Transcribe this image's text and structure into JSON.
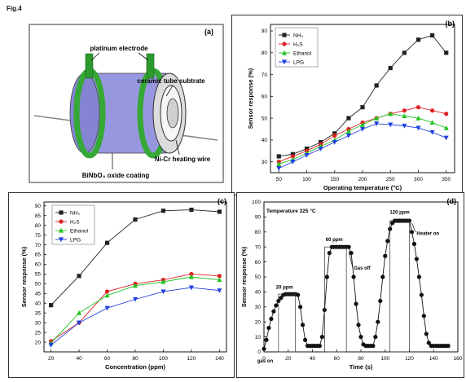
{
  "figure_label": "Fig.4",
  "panel_a": {
    "tag": "(a)",
    "labels": {
      "electrode": "platinum electrode",
      "tube": "ceramic tube subtrate",
      "heater": "Ni-Cr heating wire",
      "coating": "BiNbO₄ oxide coating"
    }
  },
  "chart_data": [
    {
      "panel": "(b)",
      "type": "line",
      "xlabel": "Operating temperature (°C)",
      "ylabel": "Sensor response (%)",
      "xlim": [
        35,
        365
      ],
      "ylim": [
        25,
        93
      ],
      "xticks": [
        50,
        100,
        150,
        200,
        250,
        300,
        350
      ],
      "yticks": [
        30,
        40,
        50,
        60,
        70,
        80,
        90
      ],
      "legend": "top-left",
      "series": [
        {
          "name": "NH₃",
          "color": "#222222",
          "marker": "square",
          "x": [
            50,
            75,
            100,
            125,
            150,
            175,
            200,
            225,
            250,
            275,
            300,
            325,
            350
          ],
          "y": [
            32.5,
            33.5,
            36,
            39,
            43,
            50,
            55,
            65,
            73,
            80,
            86,
            88,
            80
          ]
        },
        {
          "name": "H₂S",
          "color": "#e02020",
          "marker": "circle",
          "x": [
            50,
            75,
            100,
            125,
            150,
            175,
            200,
            225,
            250,
            275,
            300,
            325,
            350
          ],
          "y": [
            30,
            32.5,
            35,
            38,
            42,
            45,
            48,
            50,
            52,
            53.5,
            55,
            53.5,
            52
          ]
        },
        {
          "name": "Ethanol",
          "color": "#22c322",
          "marker": "triangle-up",
          "x": [
            50,
            75,
            100,
            125,
            150,
            175,
            200,
            225,
            250,
            275,
            300,
            325,
            350
          ],
          "y": [
            29,
            31,
            34,
            37,
            40,
            44,
            47,
            50,
            52,
            51,
            50,
            48,
            45.5
          ]
        },
        {
          "name": "LPG",
          "color": "#2040e0",
          "marker": "triangle-down",
          "x": [
            50,
            75,
            100,
            125,
            150,
            175,
            200,
            225,
            250,
            275,
            300,
            325,
            350
          ],
          "y": [
            27,
            30,
            33,
            36,
            39,
            42,
            45,
            47.5,
            47,
            46.5,
            45.5,
            43.5,
            41
          ]
        }
      ]
    },
    {
      "panel": "(c)",
      "type": "line",
      "xlabel": "Concentration (ppm)",
      "ylabel": "Sensor response (%)",
      "xlim": [
        15,
        145
      ],
      "ylim": [
        15,
        92
      ],
      "xticks": [
        20,
        40,
        60,
        80,
        100,
        120,
        140
      ],
      "yticks": [
        20,
        25,
        30,
        35,
        40,
        45,
        50,
        55,
        60,
        65,
        70,
        75,
        80,
        85,
        90
      ],
      "legend": "top-left",
      "series": [
        {
          "name": "NH₃",
          "color": "#222222",
          "marker": "square",
          "x": [
            20,
            40,
            60,
            80,
            100,
            120,
            140
          ],
          "y": [
            39,
            54,
            71,
            83,
            87.5,
            88,
            87
          ]
        },
        {
          "name": "H₂S",
          "color": "#e02020",
          "marker": "circle",
          "x": [
            20,
            40,
            60,
            80,
            100,
            120,
            140
          ],
          "y": [
            20.5,
            30,
            46,
            50,
            52,
            55,
            54
          ]
        },
        {
          "name": "Ethanol",
          "color": "#22c322",
          "marker": "triangle-up",
          "x": [
            20,
            40,
            60,
            80,
            100,
            120,
            140
          ],
          "y": [
            19.5,
            35,
            44,
            49,
            51,
            53.5,
            52
          ]
        },
        {
          "name": "LPG",
          "color": "#2040e0",
          "marker": "triangle-down",
          "x": [
            20,
            40,
            60,
            80,
            100,
            120,
            140
          ],
          "y": [
            18.5,
            30,
            37.5,
            42,
            46,
            48,
            46.5
          ]
        }
      ]
    },
    {
      "panel": "(d)",
      "type": "line",
      "xlabel": "Time (s)",
      "ylabel": "Sensor response (%)",
      "xlim": [
        0,
        160
      ],
      "ylim": [
        0,
        100
      ],
      "xticks": [
        0,
        20,
        40,
        60,
        80,
        100,
        120,
        140,
        160
      ],
      "yticks": [
        0,
        10,
        20,
        30,
        40,
        50,
        60,
        70,
        80,
        90,
        100
      ],
      "title": "Temperature 325 °C",
      "annotations": [
        "20 ppm",
        "60 ppm",
        "120 ppm",
        "Gas off",
        "Heater on",
        "gas on"
      ],
      "series": [
        {
          "name": "",
          "color": "#111111",
          "marker": "circle",
          "x": [
            0,
            2,
            4,
            6,
            8,
            10,
            12,
            14,
            16,
            18,
            20,
            22,
            24,
            26,
            28,
            30,
            32,
            34,
            36,
            38,
            40,
            42,
            44,
            46,
            48,
            50,
            52,
            54,
            56,
            58,
            60,
            62,
            64,
            66,
            68,
            70,
            72,
            74,
            76,
            78,
            80,
            82,
            84,
            86,
            88,
            90,
            92,
            94,
            96,
            98,
            100,
            102,
            104,
            106,
            108,
            110,
            112,
            114,
            116,
            118,
            120,
            122,
            124,
            126,
            128,
            130,
            132,
            134,
            136,
            138,
            140,
            142,
            144,
            146,
            148,
            150,
            152
          ],
          "y": [
            2,
            8,
            16,
            22,
            27,
            31,
            34,
            36,
            38,
            38.5,
            38.5,
            38.5,
            38.5,
            38.5,
            38,
            30,
            18,
            8,
            4,
            4,
            4,
            4,
            4,
            4,
            10,
            28,
            50,
            66,
            70,
            70,
            70,
            70,
            70,
            70,
            70,
            70,
            66,
            50,
            32,
            18,
            10,
            5,
            4,
            4,
            4,
            4,
            10,
            20,
            34,
            50,
            64,
            74,
            82,
            86,
            87.5,
            87.5,
            87.5,
            87.5,
            87.5,
            87.5,
            87.5,
            80,
            72,
            62,
            50,
            38,
            24,
            12,
            6,
            4,
            4,
            4,
            4,
            4,
            4,
            4,
            4
          ]
        }
      ]
    }
  ]
}
